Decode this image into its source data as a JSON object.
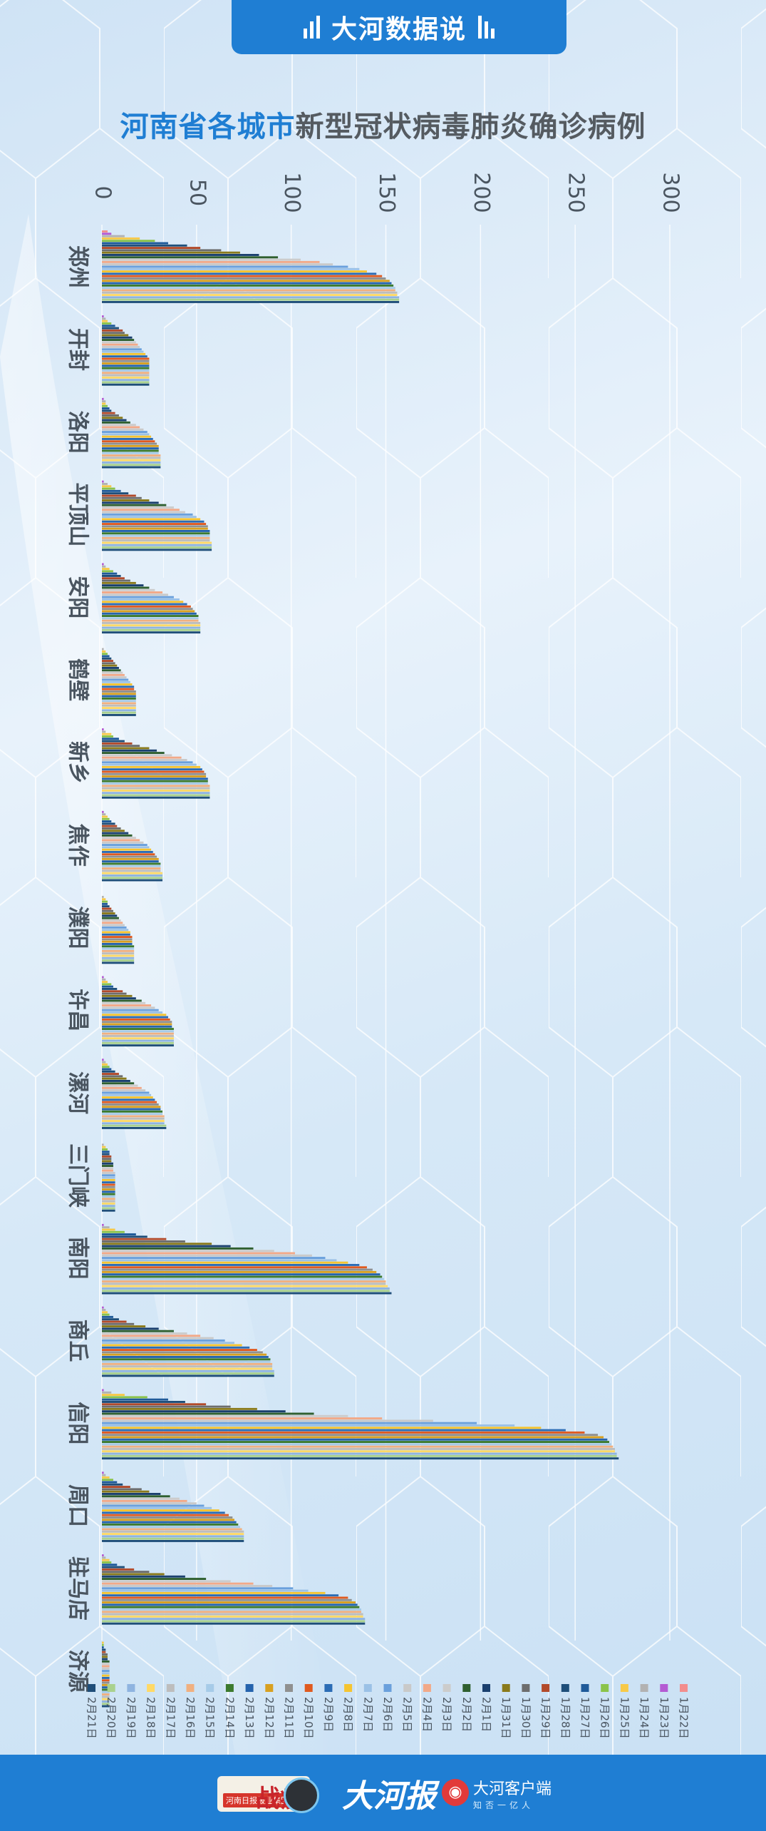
{
  "header": {
    "banner_title": "大河数据说"
  },
  "title": {
    "part1": "河南省各城市",
    "part2": "新型冠状病毒肺炎确诊病例"
  },
  "footer": {
    "badge_small": "河南日报报业集团",
    "badge_large": "战疫",
    "paper_logo": "大河报",
    "app_name": "大河客户端",
    "slogan": "知否一亿人"
  },
  "colors": {
    "accent": "#1f7ed3",
    "title_gray": "#555b61",
    "axis_text": "#4a5560"
  },
  "chart_data": {
    "type": "bar",
    "orientation": "horizontal",
    "title": "河南省各城市新型冠状病毒肺炎确诊病例",
    "value_axis": {
      "min": 0,
      "max": 300,
      "ticks": [
        0,
        50,
        100,
        150,
        200,
        250,
        300
      ],
      "position": "top"
    },
    "legend_position": "bottom",
    "grid": true,
    "categories": [
      "郑州",
      "开封",
      "洛阳",
      "平顶山",
      "安阳",
      "鹤壁",
      "新乡",
      "焦作",
      "濮阳",
      "许昌",
      "漯河",
      "三门峡",
      "南阳",
      "商丘",
      "信阳",
      "周口",
      "驻马店",
      "济源"
    ],
    "series": [
      {
        "name": "1月22日",
        "color": "#f28d8d",
        "values": [
          3,
          0,
          0,
          0,
          0,
          0,
          0,
          0,
          0,
          0,
          0,
          0,
          0,
          0,
          0,
          0,
          0,
          0
        ]
      },
      {
        "name": "1月23日",
        "color": "#b45bd3",
        "values": [
          5,
          1,
          1,
          1,
          1,
          0,
          1,
          1,
          0,
          1,
          1,
          0,
          1,
          1,
          1,
          1,
          1,
          0
        ]
      },
      {
        "name": "1月24日",
        "color": "#b2b2b2",
        "values": [
          12,
          2,
          2,
          3,
          2,
          1,
          2,
          2,
          1,
          2,
          2,
          1,
          4,
          2,
          5,
          2,
          2,
          0
        ]
      },
      {
        "name": "1月25日",
        "color": "#f7c948",
        "values": [
          20,
          3,
          2,
          5,
          4,
          2,
          5,
          3,
          2,
          3,
          3,
          2,
          7,
          3,
          12,
          4,
          4,
          1
        ]
      },
      {
        "name": "1月26日",
        "color": "#8bc34a",
        "values": [
          28,
          5,
          3,
          7,
          6,
          3,
          6,
          4,
          3,
          5,
          4,
          3,
          12,
          4,
          24,
          6,
          5,
          1
        ]
      },
      {
        "name": "1月27日",
        "color": "#1f5a99",
        "values": [
          35,
          7,
          4,
          10,
          8,
          4,
          9,
          5,
          3,
          6,
          5,
          4,
          18,
          6,
          35,
          8,
          8,
          1
        ]
      },
      {
        "name": "1月28日",
        "color": "#1e4e79",
        "values": [
          45,
          9,
          5,
          14,
          10,
          5,
          12,
          7,
          4,
          8,
          7,
          4,
          24,
          9,
          44,
          11,
          12,
          2
        ]
      },
      {
        "name": "1月29日",
        "color": "#b24a2a",
        "values": [
          52,
          11,
          7,
          18,
          12,
          6,
          16,
          8,
          5,
          11,
          9,
          5,
          34,
          13,
          55,
          15,
          17,
          2
        ]
      },
      {
        "name": "1月30日",
        "color": "#6d6d6d",
        "values": [
          63,
          12,
          9,
          21,
          15,
          7,
          20,
          10,
          6,
          13,
          11,
          5,
          44,
          17,
          68,
          21,
          25,
          3
        ]
      },
      {
        "name": "1月31日",
        "color": "#8a7a1b",
        "values": [
          73,
          14,
          11,
          25,
          18,
          8,
          25,
          12,
          7,
          16,
          13,
          5,
          58,
          23,
          82,
          25,
          33,
          3
        ]
      },
      {
        "name": "2月1日",
        "color": "#1a3f6e",
        "values": [
          83,
          16,
          13,
          30,
          22,
          9,
          29,
          14,
          8,
          18,
          15,
          6,
          68,
          30,
          97,
          31,
          44,
          3
        ]
      },
      {
        "name": "2月2日",
        "color": "#2f5f2f",
        "values": [
          93,
          17,
          15,
          34,
          25,
          10,
          33,
          16,
          9,
          21,
          17,
          6,
          80,
          38,
          112,
          36,
          55,
          4
        ]
      },
      {
        "name": "2月3日",
        "color": "#cccccc",
        "values": [
          105,
          18,
          18,
          38,
          28,
          11,
          37,
          18,
          10,
          23,
          19,
          6,
          91,
          45,
          130,
          41,
          68,
          4
        ]
      },
      {
        "name": "2月4日",
        "color": "#f2a988",
        "values": [
          115,
          19,
          20,
          41,
          32,
          12,
          42,
          20,
          11,
          26,
          21,
          6,
          102,
          52,
          148,
          45,
          80,
          4
        ]
      },
      {
        "name": "2月5日",
        "color": "#c9c9c9",
        "values": [
          122,
          20,
          22,
          44,
          35,
          13,
          45,
          22,
          12,
          28,
          23,
          7,
          111,
          59,
          175,
          50,
          90,
          4
        ]
      },
      {
        "name": "2月6日",
        "color": "#6aa0dc",
        "values": [
          130,
          21,
          24,
          48,
          38,
          14,
          48,
          24,
          13,
          30,
          25,
          7,
          118,
          65,
          198,
          54,
          101,
          4
        ]
      },
      {
        "name": "2月7日",
        "color": "#9bc1e6",
        "values": [
          136,
          22,
          25,
          50,
          41,
          15,
          50,
          25,
          14,
          32,
          26,
          7,
          124,
          70,
          218,
          58,
          109,
          4
        ]
      },
      {
        "name": "2月8日",
        "color": "#f5c430",
        "values": [
          140,
          23,
          26,
          52,
          43,
          16,
          52,
          26,
          15,
          34,
          27,
          7,
          130,
          74,
          232,
          62,
          118,
          4
        ]
      },
      {
        "name": "2月9日",
        "color": "#2b6cb5",
        "values": [
          145,
          24,
          27,
          54,
          45,
          17,
          53,
          27,
          15,
          35,
          28,
          7,
          136,
          78,
          245,
          65,
          125,
          4
        ]
      },
      {
        "name": "2月10日",
        "color": "#e05a1f",
        "values": [
          148,
          25,
          28,
          55,
          47,
          17,
          54,
          28,
          16,
          36,
          29,
          7,
          140,
          82,
          255,
          67,
          130,
          4
        ]
      },
      {
        "name": "2月11日",
        "color": "#909090",
        "values": [
          150,
          25,
          29,
          56,
          48,
          18,
          55,
          29,
          16,
          37,
          30,
          7,
          143,
          85,
          262,
          69,
          132,
          4
        ]
      },
      {
        "name": "2月12日",
        "color": "#d8a020",
        "values": [
          152,
          25,
          30,
          56,
          49,
          18,
          55,
          30,
          16,
          37,
          31,
          7,
          145,
          87,
          265,
          70,
          134,
          4
        ]
      },
      {
        "name": "2月13日",
        "color": "#2563ad",
        "values": [
          153,
          25,
          30,
          57,
          50,
          18,
          56,
          30,
          16,
          37,
          31,
          7,
          147,
          88,
          267,
          71,
          135,
          4
        ]
      },
      {
        "name": "2月14日",
        "color": "#3c7a2e",
        "values": [
          154,
          25,
          30,
          57,
          51,
          18,
          56,
          31,
          17,
          38,
          32,
          7,
          148,
          89,
          268,
          72,
          136,
          4
        ]
      },
      {
        "name": "2月15日",
        "color": "#a6cbe8",
        "values": [
          155,
          25,
          30,
          57,
          51,
          18,
          56,
          31,
          17,
          38,
          32,
          7,
          149,
          89,
          269,
          73,
          137,
          4
        ]
      },
      {
        "name": "2月16日",
        "color": "#f0b080",
        "values": [
          155,
          25,
          31,
          57,
          51,
          18,
          57,
          31,
          17,
          38,
          33,
          7,
          150,
          90,
          270,
          74,
          137,
          4
        ]
      },
      {
        "name": "2月17日",
        "color": "#bdbdbd",
        "values": [
          156,
          25,
          31,
          57,
          52,
          18,
          57,
          31,
          17,
          38,
          33,
          7,
          150,
          90,
          271,
          75,
          138,
          4
        ]
      },
      {
        "name": "2月18日",
        "color": "#ffd966",
        "values": [
          156,
          25,
          31,
          58,
          52,
          18,
          57,
          32,
          17,
          38,
          33,
          7,
          151,
          90,
          271,
          75,
          138,
          4
        ]
      },
      {
        "name": "2月19日",
        "color": "#8fb4e0",
        "values": [
          157,
          25,
          31,
          58,
          52,
          18,
          57,
          32,
          17,
          38,
          33,
          7,
          152,
          91,
          272,
          75,
          139,
          4
        ]
      },
      {
        "name": "2月20日",
        "color": "#a9d18e",
        "values": [
          157,
          25,
          31,
          58,
          52,
          18,
          57,
          32,
          17,
          38,
          34,
          7,
          152,
          91,
          272,
          75,
          139,
          4
        ]
      },
      {
        "name": "2月21日",
        "color": "#1f4e79",
        "values": [
          157,
          25,
          31,
          58,
          52,
          18,
          57,
          32,
          17,
          38,
          34,
          7,
          153,
          91,
          273,
          75,
          139,
          4
        ]
      }
    ]
  }
}
